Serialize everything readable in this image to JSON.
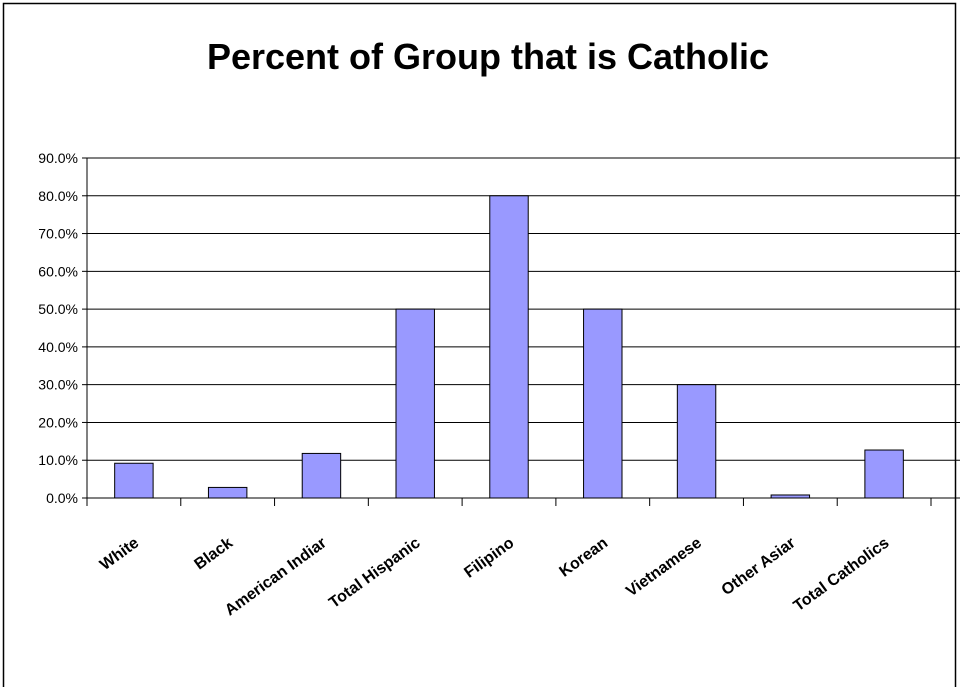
{
  "chart_data": {
    "type": "bar",
    "title": "Percent of Group that is Catholic",
    "xlabel": "",
    "ylabel": "",
    "categories": [
      "White",
      "Black",
      "American Indiar",
      "Total Hispanic",
      "Filipino",
      "Korean",
      "Vietnamese",
      "Other Asiar",
      "Total Catholics"
    ],
    "values": [
      9.2,
      2.8,
      11.8,
      50.0,
      80.0,
      50.0,
      30.0,
      0.8,
      12.7
    ],
    "ylim": [
      0,
      90
    ],
    "yticks": [
      "0.0%",
      "10.0%",
      "20.0%",
      "30.0%",
      "40.0%",
      "50.0%",
      "60.0%",
      "70.0%",
      "80.0%",
      "90.0%"
    ],
    "grid": true,
    "bar_color": "#9999ff",
    "legend": "none"
  }
}
